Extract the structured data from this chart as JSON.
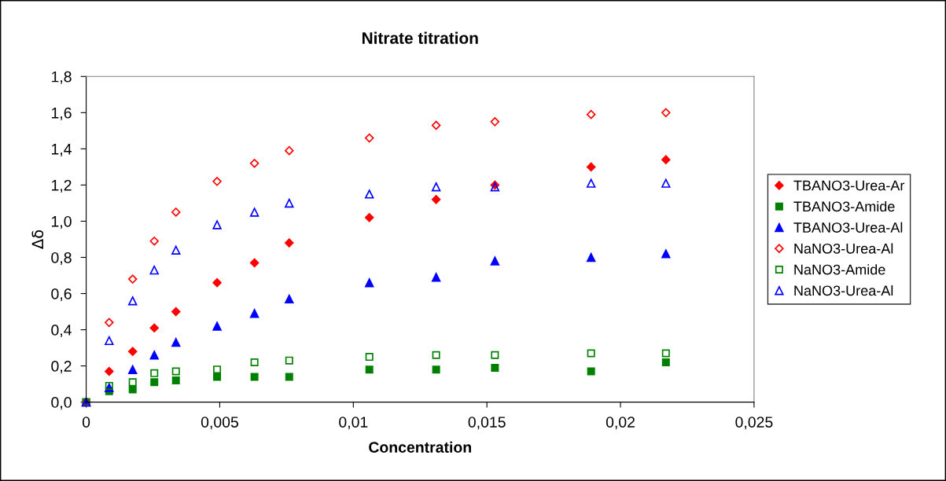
{
  "chart_data": {
    "type": "scatter",
    "title": "Nitrate titration",
    "xlabel": "Concentration",
    "ylabel": "Δδ",
    "x": [
      0,
      0.00086,
      0.00174,
      0.00255,
      0.00336,
      0.0049,
      0.0063,
      0.0076,
      0.0106,
      0.0131,
      0.0153,
      0.0189,
      0.0217
    ],
    "series": [
      {
        "name": "TBANO3-Urea-Ar",
        "color": "#ff0000",
        "marker": "diamond",
        "values": [
          0,
          0.17,
          0.28,
          0.41,
          0.5,
          0.66,
          0.77,
          0.88,
          1.02,
          1.12,
          1.2,
          1.3,
          1.34
        ]
      },
      {
        "name": "TBANO3-Amide",
        "color": "#008000",
        "marker": "square",
        "values": [
          0,
          0.06,
          0.07,
          0.11,
          0.12,
          0.14,
          0.14,
          0.14,
          0.18,
          0.18,
          0.19,
          0.17,
          0.22
        ]
      },
      {
        "name": "TBANO3-Urea-Al",
        "color": "#0000ff",
        "marker": "triangle",
        "values": [
          0,
          0.08,
          0.18,
          0.26,
          0.33,
          0.42,
          0.49,
          0.57,
          0.66,
          0.69,
          0.78,
          0.8,
          0.82
        ]
      },
      {
        "name": "NaNO3-Urea-Al",
        "color": "#ff0000",
        "marker": "diamond-open",
        "values": [
          0,
          0.44,
          0.68,
          0.89,
          1.05,
          1.22,
          1.32,
          1.39,
          1.46,
          1.53,
          1.55,
          1.59,
          1.6
        ]
      },
      {
        "name": "NaNO3-Amide",
        "color": "#008000",
        "marker": "square-open",
        "values": [
          0,
          0.09,
          0.11,
          0.16,
          0.17,
          0.18,
          0.22,
          0.23,
          0.25,
          0.26,
          0.26,
          0.27,
          0.27
        ]
      },
      {
        "name": "NaNO3-Urea-Al",
        "color": "#0000ff",
        "marker": "triangle-open",
        "values": [
          0,
          0.34,
          0.56,
          0.73,
          0.84,
          0.98,
          1.05,
          1.1,
          1.15,
          1.19,
          1.19,
          1.21,
          1.21
        ]
      }
    ],
    "xlim": [
      0,
      0.025
    ],
    "xticks": [
      {
        "value": 0,
        "label": "0"
      },
      {
        "value": 0.005,
        "label": "0,005"
      },
      {
        "value": 0.01,
        "label": "0,01"
      },
      {
        "value": 0.015,
        "label": "0,015"
      },
      {
        "value": 0.02,
        "label": "0,02"
      },
      {
        "value": 0.025,
        "label": "0,025"
      }
    ],
    "ylim": [
      0,
      1.8
    ],
    "yticks": [
      {
        "value": 0,
        "label": "0,0"
      },
      {
        "value": 0.2,
        "label": "0,2"
      },
      {
        "value": 0.4,
        "label": "0,4"
      },
      {
        "value": 0.6,
        "label": "0,6"
      },
      {
        "value": 0.8,
        "label": "0,8"
      },
      {
        "value": 1.0,
        "label": "1,0"
      },
      {
        "value": 1.2,
        "label": "1,2"
      },
      {
        "value": 1.4,
        "label": "1,4"
      },
      {
        "value": 1.6,
        "label": "1,6"
      },
      {
        "value": 1.8,
        "label": "1,8"
      }
    ],
    "grid": false,
    "legend": "right"
  }
}
